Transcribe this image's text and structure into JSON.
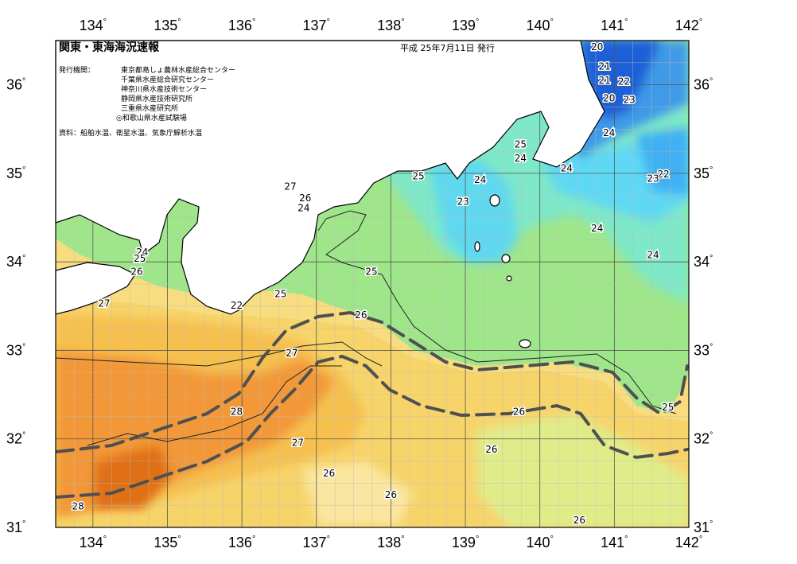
{
  "header": {
    "title": "関東・東海海況速報",
    "issue_date": "平成 25年7月11日 発行",
    "issuer_label": "発行機関：",
    "issuers": [
      "東京都島しょ農林水産総合センター",
      "千葉県水産総合研究センター",
      "神奈川県水産技術センター",
      "静岡県水産技術研究所",
      "三重県水産研究所",
      "◎和歌山県水産試験場"
    ],
    "sources": "資料：船舶水温、衛星水温、気象庁解析水温"
  },
  "axes": {
    "longitude_ticks": [
      "134",
      "135",
      "136",
      "137",
      "138",
      "139",
      "140",
      "141",
      "142"
    ],
    "latitude_ticks": [
      "36",
      "35",
      "34",
      "33",
      "32",
      "31"
    ],
    "degree_symbol": "°",
    "lon_range": [
      133.5,
      142
    ],
    "lat_range": [
      31,
      36.5
    ]
  },
  "isotherm_labels": [
    {
      "text": "20",
      "lon": 140.77,
      "lat": 36.42
    },
    {
      "text": "21",
      "lon": 140.87,
      "lat": 36.2
    },
    {
      "text": "21",
      "lon": 140.87,
      "lat": 36.04
    },
    {
      "text": "22",
      "lon": 141.13,
      "lat": 36.03
    },
    {
      "text": "20",
      "lon": 140.93,
      "lat": 35.84
    },
    {
      "text": "23",
      "lon": 141.2,
      "lat": 35.82
    },
    {
      "text": "24",
      "lon": 140.93,
      "lat": 35.45
    },
    {
      "text": "25",
      "lon": 139.74,
      "lat": 35.32
    },
    {
      "text": "24",
      "lon": 139.74,
      "lat": 35.16
    },
    {
      "text": "24",
      "lon": 140.36,
      "lat": 35.05
    },
    {
      "text": "22",
      "lon": 141.66,
      "lat": 34.98
    },
    {
      "text": "23",
      "lon": 141.52,
      "lat": 34.93
    },
    {
      "text": "25",
      "lon": 138.37,
      "lat": 34.96
    },
    {
      "text": "24",
      "lon": 139.2,
      "lat": 34.92
    },
    {
      "text": "23",
      "lon": 138.97,
      "lat": 34.67
    },
    {
      "text": "27",
      "lon": 136.65,
      "lat": 34.84
    },
    {
      "text": "26",
      "lon": 136.85,
      "lat": 34.71
    },
    {
      "text": "24",
      "lon": 136.83,
      "lat": 34.6
    },
    {
      "text": "24",
      "lon": 140.77,
      "lat": 34.37
    },
    {
      "text": "24",
      "lon": 141.52,
      "lat": 34.07
    },
    {
      "text": "24",
      "lon": 134.66,
      "lat": 34.1
    },
    {
      "text": "25",
      "lon": 134.63,
      "lat": 34.03
    },
    {
      "text": "26",
      "lon": 134.59,
      "lat": 33.88
    },
    {
      "text": "25",
      "lon": 137.74,
      "lat": 33.88
    },
    {
      "text": "25",
      "lon": 136.52,
      "lat": 33.63
    },
    {
      "text": "27",
      "lon": 134.15,
      "lat": 33.52
    },
    {
      "text": "22",
      "lon": 135.93,
      "lat": 33.5
    },
    {
      "text": "26",
      "lon": 137.6,
      "lat": 33.39
    },
    {
      "text": "27",
      "lon": 136.67,
      "lat": 32.96
    },
    {
      "text": "28",
      "lon": 135.93,
      "lat": 32.3
    },
    {
      "text": "26",
      "lon": 139.72,
      "lat": 32.3
    },
    {
      "text": "25",
      "lon": 141.72,
      "lat": 32.35
    },
    {
      "text": "27",
      "lon": 136.75,
      "lat": 31.95
    },
    {
      "text": "26",
      "lon": 139.35,
      "lat": 31.87
    },
    {
      "text": "26",
      "lon": 137.17,
      "lat": 31.6
    },
    {
      "text": "26",
      "lon": 138.0,
      "lat": 31.36
    },
    {
      "text": "28",
      "lon": 133.8,
      "lat": 31.23
    },
    {
      "text": "26",
      "lon": 140.53,
      "lat": 31.07
    }
  ],
  "legend_colors": {
    "t20": "#1f5fd6",
    "t21": "#2f86e8",
    "t22": "#3fb0f2",
    "t23": "#5fd8f4",
    "t24": "#7ee8c4",
    "t25": "#8fe07e",
    "t26": "#d8ec8a",
    "t27": "#f7d46a",
    "t28": "#f29838",
    "t29": "#e07018",
    "land": "#ffffff",
    "kuroshio": "#505050"
  }
}
